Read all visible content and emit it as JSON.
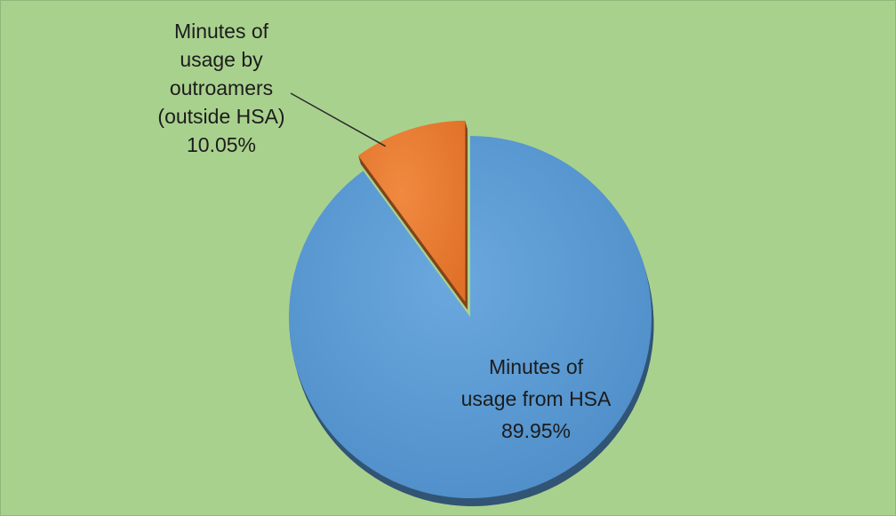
{
  "chart_data": {
    "type": "pie",
    "exploded": true,
    "style": "3d",
    "background_color": "#a9d18e",
    "slices": [
      {
        "label_lines": [
          "Minutes of",
          "usage from HSA"
        ],
        "value": 89.95,
        "value_label": "89.95%",
        "color": "#5b9bd5"
      },
      {
        "label_lines": [
          "Minutes of",
          "usage by",
          "outroamers",
          "(outside HSA)"
        ],
        "value": 10.05,
        "value_label": "10.05%",
        "color": "#ed7d31"
      }
    ]
  }
}
